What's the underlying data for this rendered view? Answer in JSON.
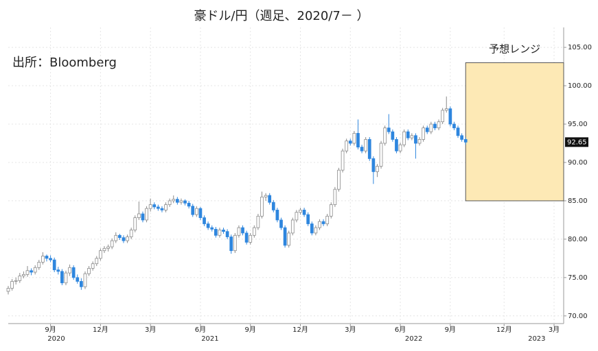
{
  "chart_data": {
    "type": "candlestick",
    "title": "豪ドル/円（週足、2020/7－ ）",
    "source": "出所：Bloomberg",
    "up_color": "#ffffff",
    "down_color": "#2e86de",
    "outline_color": "#8a8a8a",
    "candles": [
      [
        73.2,
        73.9,
        72.8,
        73.6
      ],
      [
        73.6,
        74.8,
        73.3,
        74.5
      ],
      [
        74.5,
        75.0,
        74.1,
        74.6
      ],
      [
        74.6,
        75.6,
        74.3,
        75.2
      ],
      [
        75.2,
        75.8,
        74.9,
        75.4
      ],
      [
        75.4,
        76.5,
        75.1,
        75.9
      ],
      [
        75.9,
        76.2,
        75.3,
        75.7
      ],
      [
        75.7,
        76.6,
        75.4,
        76.3
      ],
      [
        76.3,
        77.3,
        76.0,
        77.0
      ],
      [
        77.0,
        78.3,
        76.7,
        77.8
      ],
      [
        77.8,
        78.0,
        77.1,
        77.5
      ],
      [
        77.5,
        77.9,
        77.0,
        77.3
      ],
      [
        77.3,
        77.6,
        75.7,
        76.0
      ],
      [
        76.0,
        76.4,
        75.4,
        75.8
      ],
      [
        75.8,
        76.1,
        74.0,
        74.3
      ],
      [
        74.3,
        75.9,
        74.0,
        75.6
      ],
      [
        75.6,
        76.7,
        75.2,
        76.3
      ],
      [
        76.3,
        76.6,
        74.7,
        75.0
      ],
      [
        75.0,
        75.4,
        74.2,
        74.5
      ],
      [
        74.5,
        74.9,
        73.4,
        73.8
      ],
      [
        73.8,
        75.8,
        73.5,
        75.5
      ],
      [
        75.5,
        76.5,
        75.2,
        76.2
      ],
      [
        76.2,
        77.1,
        75.9,
        76.8
      ],
      [
        76.8,
        77.8,
        76.5,
        77.5
      ],
      [
        77.5,
        78.8,
        77.2,
        78.5
      ],
      [
        78.5,
        79.1,
        78.2,
        78.8
      ],
      [
        78.8,
        79.3,
        78.4,
        79.0
      ],
      [
        79.0,
        80.1,
        78.7,
        79.8
      ],
      [
        79.8,
        80.9,
        79.5,
        80.5
      ],
      [
        80.5,
        80.7,
        79.9,
        80.2
      ],
      [
        80.2,
        80.5,
        79.5,
        79.8
      ],
      [
        79.8,
        80.6,
        79.5,
        80.3
      ],
      [
        80.3,
        81.5,
        80.0,
        81.2
      ],
      [
        81.2,
        83.1,
        80.9,
        82.8
      ],
      [
        82.8,
        84.9,
        82.5,
        83.3
      ],
      [
        83.3,
        83.6,
        82.2,
        82.5
      ],
      [
        82.5,
        84.3,
        82.2,
        84.0
      ],
      [
        84.0,
        85.3,
        83.6,
        84.5
      ],
      [
        84.5,
        84.8,
        83.9,
        84.2
      ],
      [
        84.2,
        84.5,
        83.7,
        84.0
      ],
      [
        84.0,
        84.3,
        83.5,
        83.8
      ],
      [
        83.8,
        84.8,
        83.5,
        84.5
      ],
      [
        84.5,
        85.3,
        84.2,
        85.0
      ],
      [
        85.0,
        85.7,
        84.7,
        85.2
      ],
      [
        85.2,
        85.5,
        84.5,
        84.8
      ],
      [
        84.8,
        85.3,
        84.5,
        85.0
      ],
      [
        85.0,
        85.2,
        84.4,
        84.7
      ],
      [
        84.7,
        85.0,
        84.0,
        84.3
      ],
      [
        84.3,
        84.6,
        82.9,
        83.2
      ],
      [
        83.2,
        84.3,
        82.9,
        84.0
      ],
      [
        84.0,
        84.2,
        82.5,
        82.8
      ],
      [
        82.8,
        83.1,
        81.7,
        82.0
      ],
      [
        82.0,
        82.3,
        81.2,
        81.5
      ],
      [
        81.5,
        81.8,
        81.0,
        81.3
      ],
      [
        81.3,
        81.6,
        80.2,
        80.5
      ],
      [
        80.5,
        81.5,
        80.2,
        81.2
      ],
      [
        81.2,
        81.5,
        80.7,
        81.0
      ],
      [
        81.0,
        81.3,
        80.0,
        80.3
      ],
      [
        80.3,
        80.6,
        78.1,
        78.5
      ],
      [
        78.5,
        80.8,
        78.2,
        80.5
      ],
      [
        80.5,
        81.8,
        80.2,
        81.5
      ],
      [
        81.5,
        81.8,
        80.5,
        80.8
      ],
      [
        80.8,
        81.1,
        79.3,
        79.6
      ],
      [
        79.6,
        80.8,
        79.3,
        80.5
      ],
      [
        80.5,
        81.8,
        80.2,
        81.5
      ],
      [
        81.5,
        83.3,
        81.2,
        83.0
      ],
      [
        83.0,
        86.2,
        82.7,
        85.5
      ],
      [
        85.5,
        86.0,
        85.0,
        85.7
      ],
      [
        85.7,
        86.0,
        84.5,
        84.8
      ],
      [
        84.8,
        85.1,
        83.5,
        83.8
      ],
      [
        83.8,
        84.1,
        82.2,
        82.5
      ],
      [
        82.5,
        82.8,
        81.2,
        81.5
      ],
      [
        81.5,
        81.8,
        78.9,
        79.2
      ],
      [
        79.2,
        81.1,
        78.9,
        80.8
      ],
      [
        80.8,
        82.8,
        80.5,
        82.5
      ],
      [
        82.5,
        83.8,
        82.2,
        83.5
      ],
      [
        83.5,
        84.1,
        83.2,
        83.8
      ],
      [
        83.8,
        84.1,
        82.9,
        83.2
      ],
      [
        83.2,
        83.5,
        81.7,
        82.0
      ],
      [
        82.0,
        82.3,
        80.5,
        80.8
      ],
      [
        80.8,
        81.8,
        80.5,
        81.5
      ],
      [
        81.5,
        82.6,
        81.2,
        82.3
      ],
      [
        82.3,
        82.6,
        81.7,
        82.0
      ],
      [
        82.0,
        83.3,
        81.7,
        83.0
      ],
      [
        83.0,
        84.8,
        82.7,
        84.5
      ],
      [
        84.5,
        86.8,
        84.2,
        86.5
      ],
      [
        86.5,
        89.3,
        86.2,
        89.0
      ],
      [
        89.0,
        91.8,
        88.7,
        91.5
      ],
      [
        91.5,
        93.1,
        91.2,
        92.8
      ],
      [
        92.8,
        93.1,
        92.2,
        92.5
      ],
      [
        92.5,
        94.1,
        92.2,
        93.8
      ],
      [
        93.8,
        95.6,
        91.7,
        92.0
      ],
      [
        92.0,
        92.3,
        91.2,
        91.5
      ],
      [
        91.5,
        93.3,
        91.2,
        93.0
      ],
      [
        93.0,
        93.3,
        90.2,
        90.5
      ],
      [
        90.5,
        90.8,
        87.2,
        88.8
      ],
      [
        88.8,
        89.8,
        88.1,
        89.5
      ],
      [
        89.5,
        92.8,
        89.2,
        92.5
      ],
      [
        92.5,
        94.8,
        92.2,
        94.5
      ],
      [
        94.5,
        96.3,
        93.7,
        94.0
      ],
      [
        94.0,
        94.3,
        92.7,
        93.0
      ],
      [
        93.0,
        93.3,
        91.2,
        91.5
      ],
      [
        91.5,
        92.6,
        91.2,
        92.3
      ],
      [
        92.3,
        94.3,
        92.0,
        94.0
      ],
      [
        94.0,
        94.3,
        92.9,
        93.2
      ],
      [
        93.2,
        93.8,
        92.9,
        93.5
      ],
      [
        93.5,
        93.8,
        90.5,
        92.5
      ],
      [
        92.5,
        93.3,
        92.2,
        93.0
      ],
      [
        93.0,
        94.8,
        92.7,
        94.5
      ],
      [
        94.5,
        94.8,
        93.7,
        94.0
      ],
      [
        94.0,
        95.3,
        93.7,
        95.0
      ],
      [
        95.0,
        95.3,
        94.2,
        94.5
      ],
      [
        94.5,
        95.6,
        94.2,
        95.3
      ],
      [
        95.3,
        97.1,
        95.0,
        96.8
      ],
      [
        96.8,
        98.6,
        96.5,
        97.0
      ],
      [
        97.0,
        97.3,
        94.7,
        95.0
      ],
      [
        95.0,
        95.3,
        94.2,
        94.5
      ],
      [
        94.5,
        94.8,
        93.2,
        93.5
      ],
      [
        93.5,
        93.8,
        92.7,
        93.0
      ],
      [
        93.0,
        93.3,
        92.3,
        92.65
      ]
    ],
    "last_price": 92.65,
    "forecast_range": {
      "label": "予想レンジ",
      "low": 85,
      "high": 103,
      "color": "#fde9b5"
    },
    "xlim": [
      0,
      144.5
    ],
    "xticks": [
      {
        "value": 11,
        "label": "9月"
      },
      {
        "value": 24,
        "label": "12月"
      },
      {
        "value": 37,
        "label": "3月"
      },
      {
        "value": 50,
        "label": "6月"
      },
      {
        "value": 63,
        "label": "9月"
      },
      {
        "value": 76,
        "label": "12月"
      },
      {
        "value": 89,
        "label": "3月"
      },
      {
        "value": 102,
        "label": "6月"
      },
      {
        "value": 115,
        "label": "9月"
      },
      {
        "value": 129,
        "label": "12月"
      },
      {
        "value": 142,
        "label": "3月"
      }
    ],
    "year_labels": [
      {
        "value": 12.5,
        "label": "2020"
      },
      {
        "value": 52.5,
        "label": "2021"
      },
      {
        "value": 105.5,
        "label": "2022"
      },
      {
        "value": 137.5,
        "label": "2023"
      }
    ],
    "ylim": [
      69,
      107.6
    ],
    "yticks": [
      {
        "value": 70,
        "label": "70.00"
      },
      {
        "value": 75,
        "label": "75.00"
      },
      {
        "value": 80,
        "label": "80.00"
      },
      {
        "value": 85,
        "label": "85.00"
      },
      {
        "value": 90,
        "label": "90.00"
      },
      {
        "value": 95,
        "label": "95.00"
      },
      {
        "value": 100,
        "label": "100.00"
      },
      {
        "value": 105,
        "label": "105.00"
      }
    ],
    "grid": true
  }
}
